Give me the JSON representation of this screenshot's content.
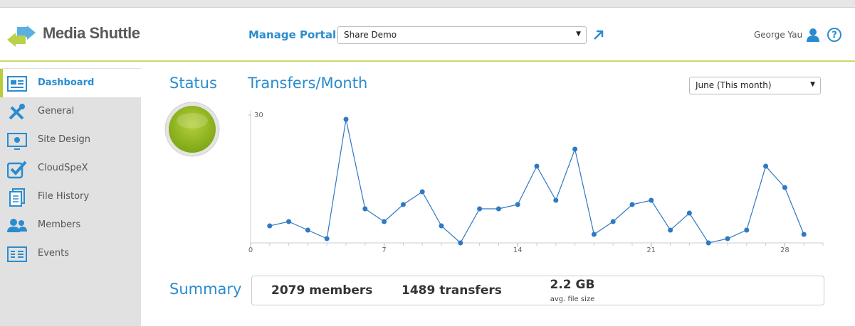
{
  "header": {
    "logo_text": "Media Shuttle",
    "portal_label": "Manage Portal:",
    "portal_select": "Share Demo",
    "user": "George Yau"
  },
  "sidebar": {
    "items": [
      "Dashboard",
      "General",
      "Site Design",
      "CloudSpeX",
      "File History",
      "Members",
      "Events"
    ]
  },
  "status_title": "Status",
  "month_select": "June (This month)",
  "chart_data": {
    "type": "line",
    "title": "Transfers/Month",
    "x": [
      1,
      2,
      3,
      4,
      5,
      6,
      7,
      8,
      9,
      10,
      11,
      12,
      13,
      14,
      15,
      16,
      17,
      18,
      19,
      20,
      21,
      22,
      23,
      24,
      25,
      26,
      27,
      28,
      29
    ],
    "series": [
      {
        "name": "Transfers",
        "color": "#2f78c2",
        "values": [
          4,
          5,
          3,
          1,
          29,
          8,
          5,
          9,
          12,
          4,
          0,
          8,
          8,
          9,
          18,
          10,
          22,
          2,
          5,
          9,
          10,
          3,
          7,
          0,
          1,
          3,
          18,
          13,
          2
        ]
      }
    ],
    "xlim": [
      0,
      30
    ],
    "xticks": [
      0,
      7,
      14,
      21,
      28
    ],
    "ylim": [
      0,
      31
    ],
    "yticks": [
      30
    ]
  },
  "summary": {
    "title": "Summary",
    "members": "2079 members",
    "transfers": "1489 transfers",
    "file_size": "2.2 GB",
    "file_size_label": "avg. file size"
  }
}
